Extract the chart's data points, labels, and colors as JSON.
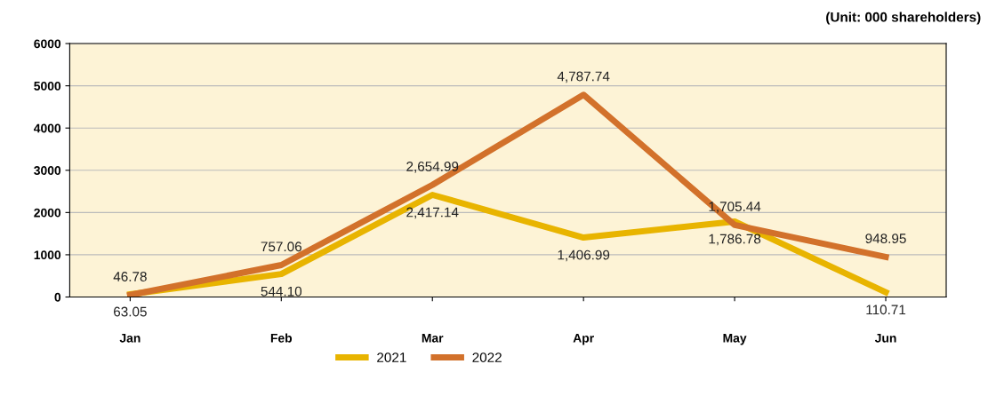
{
  "chart_data": {
    "type": "line",
    "annotations": [
      "(Unit: 000 shareholders)"
    ],
    "categories": [
      "Jan",
      "Feb",
      "Mar",
      "Apr",
      "May",
      "Jun"
    ],
    "series": [
      {
        "name": "2021",
        "color": "#e8b400",
        "values": [
          63.05,
          544.1,
          2417.14,
          1406.99,
          1786.78,
          110.71
        ],
        "value_labels": [
          "63.05",
          "544.10",
          "2,417.14",
          "1,406.99",
          "1,786.78",
          "110.71"
        ]
      },
      {
        "name": "2022",
        "color": "#d2712b",
        "values": [
          46.78,
          757.06,
          2654.99,
          4787.74,
          1705.44,
          948.95
        ],
        "value_labels": [
          "46.78",
          "757.06",
          "2,654.99",
          "4,787.74",
          "1,705.44",
          "948.95"
        ]
      }
    ],
    "ylim": [
      0,
      6000
    ],
    "yticks": [
      0,
      1000,
      2000,
      3000,
      4000,
      5000,
      6000
    ],
    "grid": "y",
    "legend": "bottom",
    "marker": "none",
    "line_style": "solid"
  }
}
